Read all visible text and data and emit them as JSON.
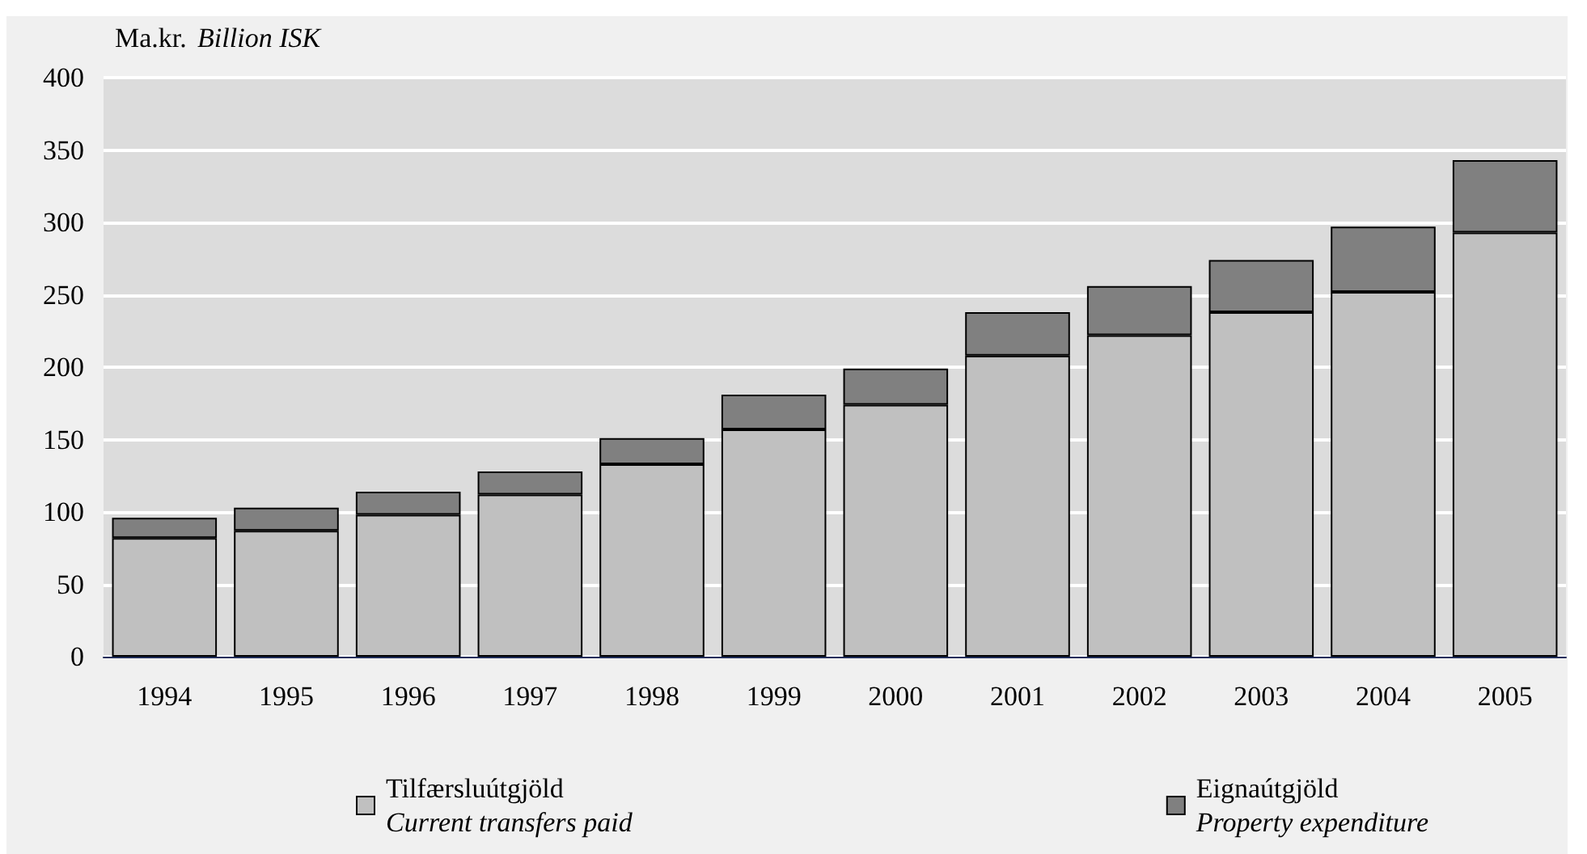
{
  "chart_data": {
    "type": "bar",
    "stacked": true,
    "ylabel": "Ma.kr. Billion ISK",
    "categories": [
      "1994",
      "1995",
      "1996",
      "1997",
      "1998",
      "1999",
      "2000",
      "2001",
      "2002",
      "2003",
      "2004",
      "2005"
    ],
    "series": [
      {
        "name": "Tilfærsluútgjöld\nCurrent transfers paid",
        "color": "#c0c0c0",
        "values": [
          82,
          87,
          98,
          112,
          133,
          157,
          174,
          208,
          222,
          238,
          252,
          293
        ]
      },
      {
        "name": "Eignaútgjöld\nProperty expenditure",
        "color": "#808080",
        "values": [
          14,
          16,
          16,
          16,
          18,
          24,
          25,
          30,
          34,
          36,
          45,
          50
        ]
      }
    ],
    "ylim": [
      0,
      400
    ],
    "yticks": [
      0,
      50,
      100,
      150,
      200,
      250,
      300,
      350,
      400
    ],
    "grid": "y",
    "legend": "bottom"
  }
}
